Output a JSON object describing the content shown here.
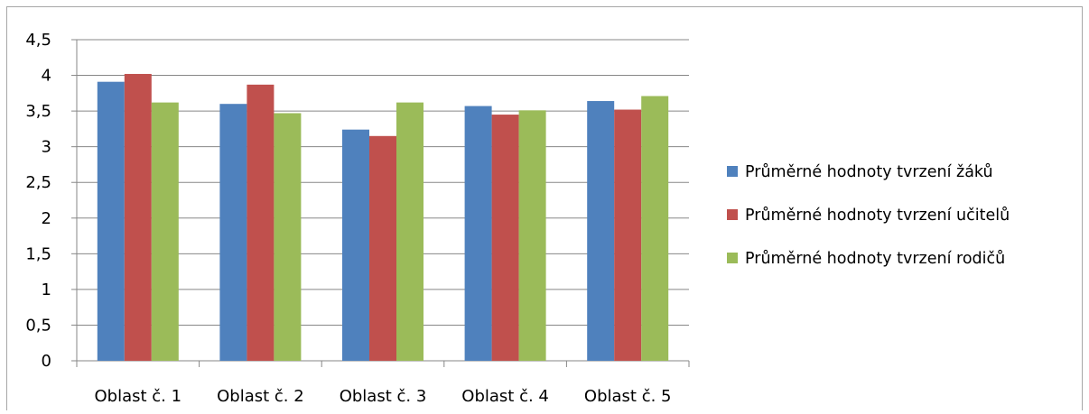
{
  "chart_data": {
    "type": "bar",
    "categories": [
      "Oblast č. 1",
      "Oblast č. 2",
      "Oblast č. 3",
      "Oblast č. 4",
      "Oblast č. 5"
    ],
    "series": [
      {
        "name": "Průměrné hodnoty tvrzení žáků",
        "color": "#4f81bd",
        "values": [
          3.91,
          3.6,
          3.24,
          3.57,
          3.64
        ]
      },
      {
        "name": "Průměrné hodnoty tvrzení učitelů",
        "color": "#c0504d",
        "values": [
          4.02,
          3.87,
          3.15,
          3.45,
          3.52
        ]
      },
      {
        "name": "Průměrné hodnoty tvrzení rodičů",
        "color": "#9bbb59",
        "values": [
          3.62,
          3.47,
          3.62,
          3.51,
          3.71
        ]
      }
    ],
    "y_ticks": [
      "0",
      "0,5",
      "1",
      "1,5",
      "2",
      "2,5",
      "3",
      "3,5",
      "4",
      "4,5"
    ],
    "ylim": [
      0,
      4.5
    ],
    "grid": true,
    "legend_position": "right"
  }
}
